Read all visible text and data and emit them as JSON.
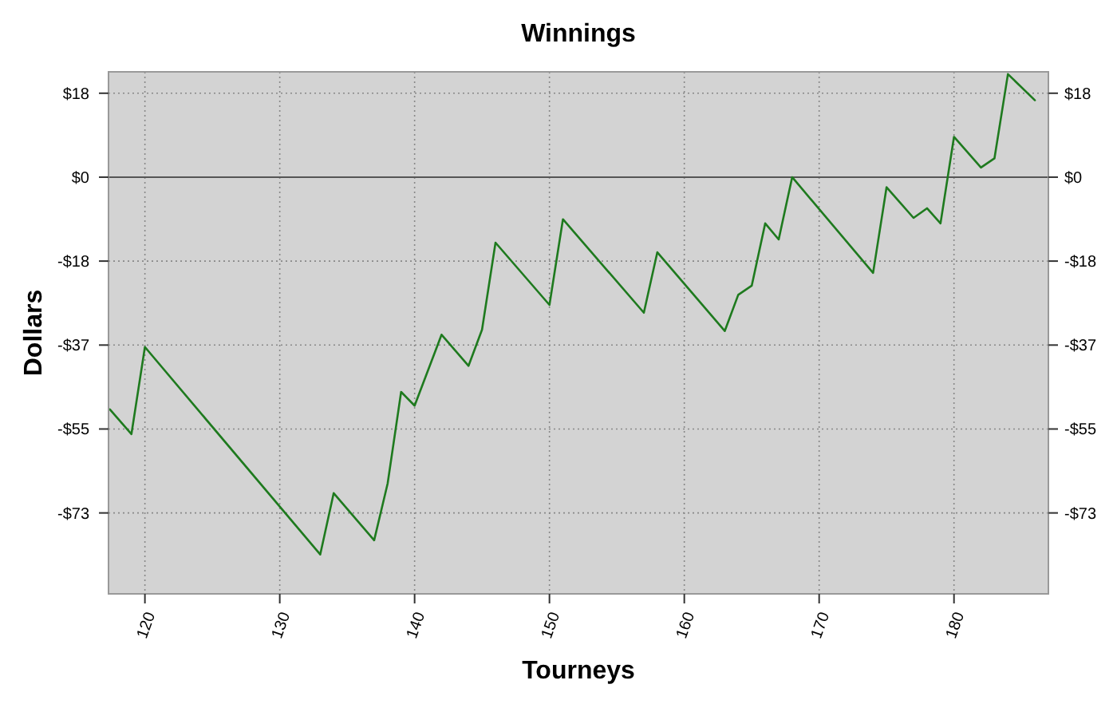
{
  "chart_data": {
    "type": "line",
    "title": "Winnings",
    "xlabel": "Tourneys",
    "ylabel": "Dollars",
    "xlim": [
      117.3,
      187
    ],
    "xticks": [
      120,
      130,
      140,
      150,
      160,
      170,
      180
    ],
    "ylim": [
      -91,
      23
    ],
    "yticks": [
      {
        "value": 18.33,
        "label": "$18"
      },
      {
        "value": 0,
        "label": "$0"
      },
      {
        "value": -18.33,
        "label": "-$18"
      },
      {
        "value": -36.67,
        "label": "-$37"
      },
      {
        "value": -55,
        "label": "-$55"
      },
      {
        "value": -73.33,
        "label": "-$73"
      }
    ],
    "y2lim": [
      -91,
      23
    ],
    "y2ticks": [
      {
        "value": 18.33,
        "label": "$18"
      },
      {
        "value": 0,
        "label": "$0"
      },
      {
        "value": -18.33,
        "label": "-$18"
      },
      {
        "value": -36.67,
        "label": "-$37"
      },
      {
        "value": -55,
        "label": "-$55"
      },
      {
        "value": -73.33,
        "label": "-$73"
      }
    ],
    "grid": true,
    "marker": "none",
    "line_style": "solid",
    "ref_lines": [
      {
        "axis": "y",
        "value": 0,
        "color": "#555555"
      }
    ],
    "series": [
      {
        "color": "#1e7a1e",
        "x": [
          117.4,
          119,
          120,
          133,
          134,
          137,
          138,
          139,
          140,
          142,
          144,
          145,
          146,
          150,
          151,
          157,
          158,
          163,
          164,
          165,
          166,
          167,
          168,
          174,
          175,
          177,
          178,
          179,
          180,
          182,
          183,
          184,
          186
        ],
        "values": [
          -50.7,
          -56.1,
          -37.1,
          -82.4,
          -69,
          -79.3,
          -66.9,
          -46.9,
          -49.9,
          -34.4,
          -41.2,
          -33.3,
          -14.3,
          -27.9,
          -9.2,
          -29.6,
          -16.4,
          -33.6,
          -25.7,
          -23.7,
          -10.1,
          -13.6,
          0,
          -20.9,
          -2.2,
          -8.9,
          -6.8,
          -10.1,
          8.8,
          2.1,
          4.1,
          22.5,
          16.8
        ]
      }
    ]
  }
}
